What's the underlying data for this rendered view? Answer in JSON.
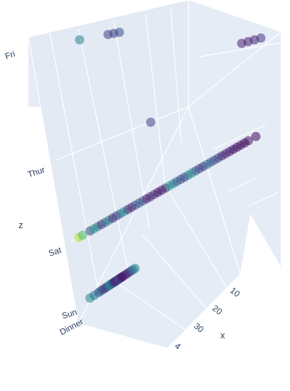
{
  "chart_data": {
    "type": "scatter",
    "title": "",
    "scene_background": "#e5ecf6",
    "grid_color": "#ffffff",
    "text_color": "#2a3f5f",
    "colorscale": [
      "#440154",
      "#482878",
      "#3e4989",
      "#31688e",
      "#26828e",
      "#1f9e89",
      "#35b779",
      "#6ece58",
      "#b5de2b",
      "#fde725"
    ],
    "axes": {
      "x": {
        "title": "x",
        "ticks": [
          "10",
          "20",
          "30",
          "4"
        ]
      },
      "y": {
        "title": "",
        "ticks": [
          "Sun",
          "Dinner"
        ]
      },
      "z": {
        "title": "z",
        "ticks": [
          "Fri",
          "Thur",
          "Sat",
          "Sun"
        ]
      }
    },
    "series": [
      {
        "group": "Sun",
        "x": [
          3,
          5,
          7,
          8,
          9,
          10,
          11,
          12,
          12.5,
          13,
          13.5,
          14,
          14.5,
          15,
          15.5,
          16,
          16.5,
          17,
          17.5,
          18,
          18.5,
          19,
          20,
          21,
          22,
          23,
          24,
          25
        ],
        "color_values": [
          0.45,
          0.4,
          0.3,
          0.35,
          0.25,
          0.2,
          0.15,
          0.3,
          0.4,
          0.45,
          0.5,
          0.3,
          0.2,
          0.15,
          0.1,
          0.1,
          0.15,
          0.2,
          0.25,
          0.1,
          0.1,
          0.05,
          0.08,
          0.1,
          0.12,
          0.2,
          0.35,
          0.45
        ]
      },
      {
        "group": "Sat",
        "x": [
          3,
          4,
          6,
          7,
          8,
          9,
          10,
          11,
          12,
          13,
          14,
          15,
          16,
          17,
          18,
          19,
          20,
          21,
          22,
          23,
          24,
          25,
          26,
          27,
          28,
          29,
          30,
          31,
          32,
          33,
          34,
          35,
          36,
          37,
          38,
          39,
          40,
          41,
          42,
          43,
          44,
          45,
          46,
          47,
          48,
          50
        ],
        "color_values": [
          0.9,
          0.7,
          0.2,
          0.55,
          0.4,
          0.15,
          0.3,
          0.45,
          0.1,
          0.2,
          0.35,
          0.5,
          0.15,
          0.1,
          0.2,
          0.3,
          0.25,
          0.1,
          0.08,
          0.15,
          0.05,
          0.05,
          0.1,
          0.55,
          0.45,
          0.3,
          0.25,
          0.2,
          0.4,
          0.5,
          0.3,
          0.2,
          0.15,
          0.35,
          0.3,
          0.25,
          0.2,
          0.1,
          0.1,
          0.08,
          0.05,
          0.05,
          0.05,
          0.03,
          0.04,
          0.02
        ]
      },
      {
        "group": "Thur",
        "x": [
          20
        ],
        "color_values": [
          0.2
        ]
      },
      {
        "group": "Fri",
        "x": [
          3,
          8,
          9,
          10,
          41,
          42,
          43,
          44
        ],
        "color_values": [
          0.45,
          0.2,
          0.2,
          0.25,
          0.1,
          0.08,
          0.1,
          0.15
        ]
      }
    ]
  }
}
